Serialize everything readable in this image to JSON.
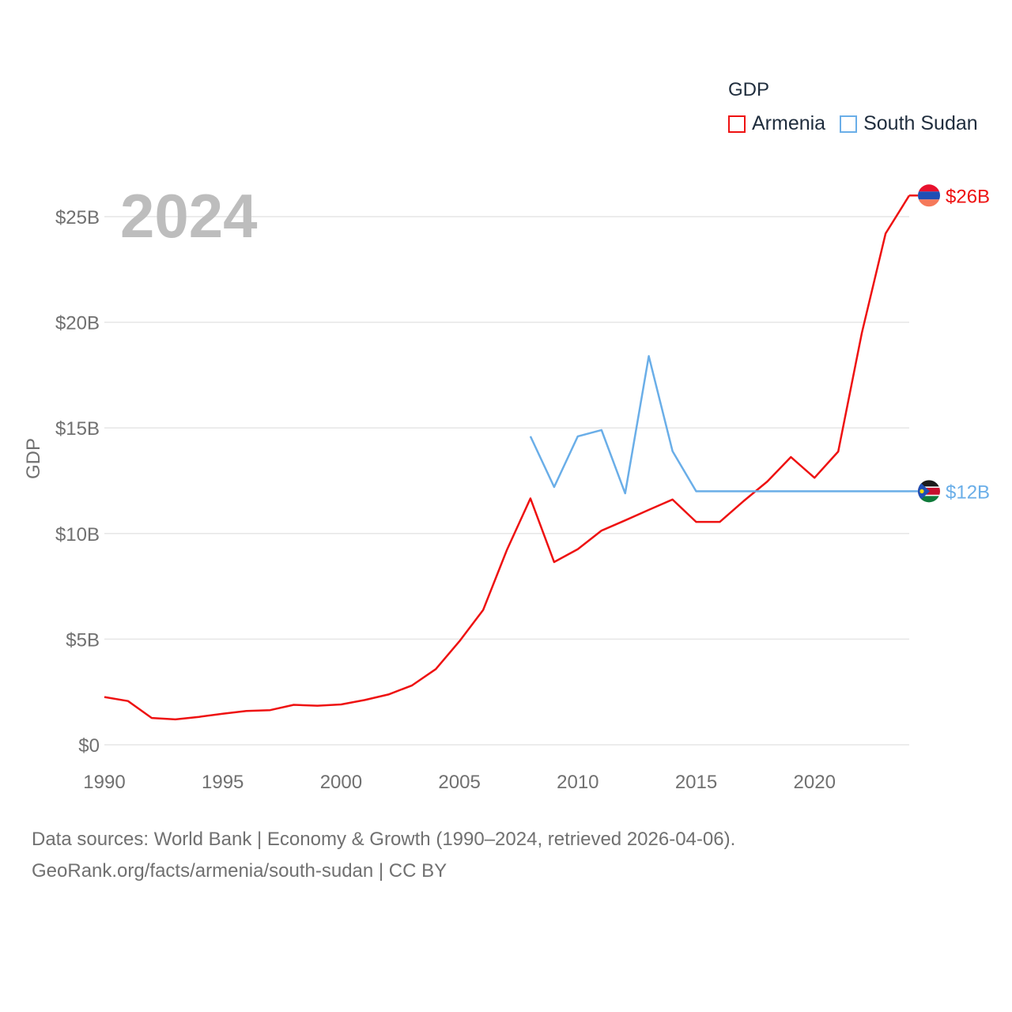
{
  "legend": {
    "title": "GDP",
    "items": [
      {
        "label": "Armenia",
        "color": "#ee1111"
      },
      {
        "label": "South Sudan",
        "color": "#6aaee8"
      }
    ]
  },
  "year_label": "2024",
  "footer": {
    "line1": "Data sources: World Bank | Economy & Growth (1990–2024, retrieved 2026-04-06).",
    "line2": "GeoRank.org/facts/armenia/south-sudan | CC BY"
  },
  "chart_data": {
    "type": "line",
    "title": "",
    "xlabel": "",
    "ylabel": "GDP",
    "xlim": [
      1990,
      2024
    ],
    "ylim": [
      0,
      27
    ],
    "x_ticks": [
      1990,
      1995,
      2000,
      2005,
      2010,
      2015,
      2020
    ],
    "x_tick_labels": [
      "1990",
      "1995",
      "2000",
      "2005",
      "2010",
      "2015",
      "2020"
    ],
    "y_ticks": [
      0,
      5,
      10,
      15,
      20,
      25
    ],
    "y_tick_labels": [
      "$0",
      "$5B",
      "$10B",
      "$15B",
      "$20B",
      "$25B"
    ],
    "grid": true,
    "series": [
      {
        "name": "Armenia",
        "color": "#ee1111",
        "end_label": "$26B",
        "x": [
          1990,
          1991,
          1992,
          1993,
          1994,
          1995,
          1996,
          1997,
          1998,
          1999,
          2000,
          2001,
          2002,
          2003,
          2004,
          2005,
          2006,
          2007,
          2008,
          2009,
          2010,
          2011,
          2012,
          2013,
          2014,
          2015,
          2016,
          2017,
          2018,
          2019,
          2020,
          2021,
          2022,
          2023,
          2024
        ],
        "values": [
          2.26,
          2.07,
          1.27,
          1.2,
          1.32,
          1.47,
          1.6,
          1.64,
          1.89,
          1.85,
          1.91,
          2.12,
          2.38,
          2.81,
          3.58,
          4.9,
          6.38,
          9.21,
          11.66,
          8.65,
          9.26,
          10.14,
          10.62,
          11.12,
          11.61,
          10.55,
          10.55,
          11.53,
          12.46,
          13.62,
          12.64,
          13.88,
          19.5,
          24.2,
          26.0
        ]
      },
      {
        "name": "South Sudan",
        "color": "#6aaee8",
        "end_label": "$12B",
        "x": [
          2008,
          2009,
          2010,
          2011,
          2012,
          2013,
          2014,
          2015,
          2016,
          2017,
          2018,
          2019,
          2020,
          2021,
          2022,
          2023,
          2024
        ],
        "values": [
          14.6,
          12.2,
          14.6,
          14.9,
          11.9,
          18.4,
          13.9,
          12.0,
          12.0,
          12.0,
          12.0,
          12.0,
          12.0,
          12.0,
          12.0,
          12.0,
          12.0
        ]
      }
    ]
  }
}
